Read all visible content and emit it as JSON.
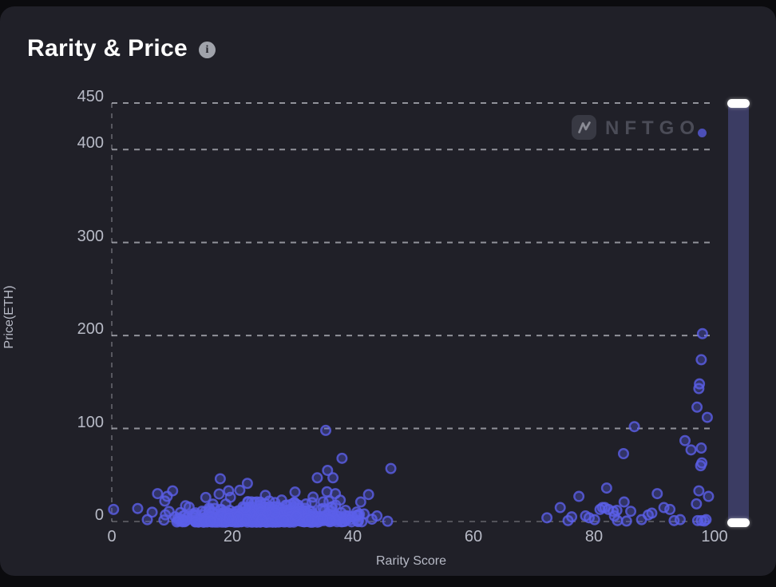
{
  "card": {
    "title": "Rarity & Price",
    "info_icon": "i"
  },
  "watermark": {
    "brand": "NFTGO",
    "logo_icon": "n-pulse-icon"
  },
  "colors": {
    "page_bg": "#0b0b0e",
    "card_bg": "#202028",
    "title": "#ffffff",
    "axis_text": "#b7bac6",
    "grid": "#d6d8e0",
    "dot": "#5b5fe8",
    "slider_track": "#3b3c63",
    "slider_handle": "#ffffff",
    "watermark_text": "#4b4c57",
    "watermark_dot": "#5154c8"
  },
  "chart_data": {
    "type": "scatter",
    "title": "Rarity & Price",
    "xlabel": "Rarity Score",
    "ylabel": "Price(ETH)",
    "xlim": [
      0,
      101
    ],
    "ylim": [
      0,
      450
    ],
    "x_ticks": [
      0,
      20,
      40,
      60,
      80,
      100
    ],
    "y_ticks": [
      0,
      100,
      200,
      300,
      400,
      450
    ],
    "grid": "dashed-horizontal",
    "legend": "none",
    "points": [
      [
        0.3,
        13
      ],
      [
        4.3,
        14
      ],
      [
        5.9,
        2
      ],
      [
        6.7,
        10
      ],
      [
        7.6,
        30
      ],
      [
        8.8,
        22
      ],
      [
        9.2,
        27
      ],
      [
        10.1,
        33
      ],
      [
        18,
        46
      ],
      [
        22.5,
        41
      ],
      [
        34.1,
        47
      ],
      [
        35.8,
        55
      ],
      [
        36.7,
        47
      ],
      [
        38.2,
        68
      ],
      [
        35.5,
        98
      ],
      [
        35.7,
        32
      ],
      [
        37.1,
        30
      ],
      [
        37.9,
        23
      ],
      [
        39.6,
        2
      ],
      [
        40.7,
        7
      ],
      [
        41.3,
        21
      ],
      [
        42.6,
        29
      ],
      [
        44,
        6
      ],
      [
        46.3,
        57
      ],
      [
        72.2,
        4
      ],
      [
        74.4,
        15
      ],
      [
        75.7,
        1
      ],
      [
        76.3,
        5
      ],
      [
        77.5,
        27
      ],
      [
        78.6,
        6
      ],
      [
        79.2,
        4
      ],
      [
        80.1,
        2
      ],
      [
        81,
        13
      ],
      [
        81.4,
        15
      ],
      [
        81.8,
        15
      ],
      [
        82.1,
        36
      ],
      [
        82.4,
        13
      ],
      [
        83.2,
        11
      ],
      [
        83.4,
        6
      ],
      [
        83.8,
        12
      ],
      [
        83.9,
        1
      ],
      [
        85,
        21
      ],
      [
        85.4,
        0.5
      ],
      [
        86.1,
        11
      ],
      [
        87.9,
        2
      ],
      [
        89,
        7
      ],
      [
        89.6,
        9
      ],
      [
        90.5,
        30
      ],
      [
        91.6,
        15
      ],
      [
        92.6,
        13
      ],
      [
        93.3,
        1
      ],
      [
        94.3,
        2
      ],
      [
        97,
        19
      ],
      [
        97.2,
        1
      ],
      [
        97.4,
        33
      ],
      [
        97.8,
        1
      ],
      [
        98.3,
        0.5
      ],
      [
        98.6,
        2
      ],
      [
        99,
        27
      ],
      [
        84.9,
        73
      ],
      [
        86.7,
        102
      ],
      [
        95.1,
        87
      ],
      [
        96.1,
        77
      ],
      [
        97.1,
        123
      ],
      [
        97.4,
        143
      ],
      [
        97.5,
        148
      ],
      [
        97.7,
        60
      ],
      [
        97.8,
        79
      ],
      [
        97.8,
        174
      ],
      [
        97.9,
        63
      ],
      [
        98,
        202
      ],
      [
        98.8,
        112
      ]
    ],
    "dense_cluster": {
      "description": "dense band of listings between rarity 8-46 priced 0-38 ETH",
      "count": 640,
      "x_mean": 26.5,
      "x_sd": 6.8,
      "x_min": 8,
      "x_max": 46.5,
      "y_exp_mean": 6.2,
      "y_max": 38,
      "seed": 1337
    }
  },
  "slider": {
    "orientation": "vertical",
    "selection": "full-range"
  }
}
